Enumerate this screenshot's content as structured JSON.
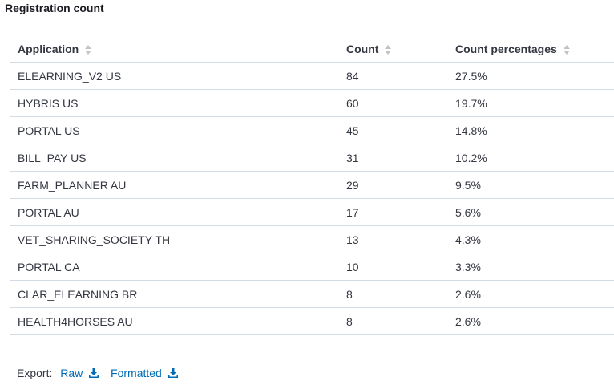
{
  "panel": {
    "title": "Registration count"
  },
  "table": {
    "columns": [
      {
        "label": "Application",
        "icon": "sort-icon"
      },
      {
        "label": "Count",
        "icon": "sort-icon"
      },
      {
        "label": "Count percentages",
        "icon": "sort-icon"
      }
    ],
    "rows": [
      {
        "application": "ELEARNING_V2 US",
        "count": "84",
        "percentage": "27.5%"
      },
      {
        "application": "HYBRIS US",
        "count": "60",
        "percentage": "19.7%"
      },
      {
        "application": "PORTAL US",
        "count": "45",
        "percentage": "14.8%"
      },
      {
        "application": "BILL_PAY US",
        "count": "31",
        "percentage": "10.2%"
      },
      {
        "application": "FARM_PLANNER AU",
        "count": "29",
        "percentage": "9.5%"
      },
      {
        "application": "PORTAL AU",
        "count": "17",
        "percentage": "5.6%"
      },
      {
        "application": "VET_SHARING_SOCIETY TH",
        "count": "13",
        "percentage": "4.3%"
      },
      {
        "application": "PORTAL CA",
        "count": "10",
        "percentage": "3.3%"
      },
      {
        "application": "CLAR_ELEARNING BR",
        "count": "8",
        "percentage": "2.6%"
      },
      {
        "application": "HEALTH4HORSES AU",
        "count": "8",
        "percentage": "2.6%"
      }
    ]
  },
  "export": {
    "label": "Export:",
    "raw_label": "Raw",
    "formatted_label": "Formatted",
    "icon": "download-icon"
  },
  "colors": {
    "link": "#006bb4",
    "text": "#343741",
    "border": "#d3dae6",
    "sort_icon": "#c2c3c6"
  }
}
